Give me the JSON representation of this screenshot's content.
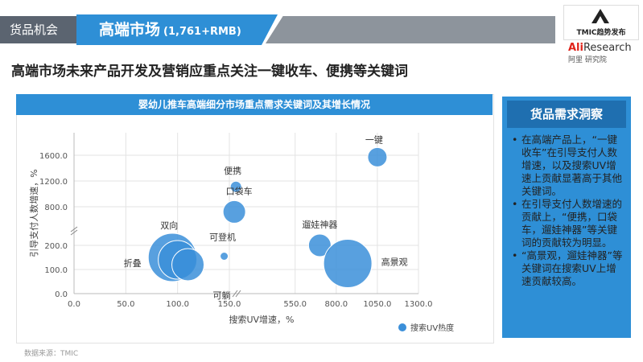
{
  "header": {
    "section": "货品机会",
    "title": "高端市场",
    "title_sub": "(1,761+RMB)",
    "logo_text": "TMIC趋势发布",
    "ali_brand": "Ali",
    "ali_brand2": "Research",
    "ali_sub": "阿里 研究院"
  },
  "headline": "高端市场未来产品开发及营销应重点关注一键收车、便携等关键词",
  "chart_title": "婴幼儿推车高端细分市场重点需求关键词及其增长情况",
  "chart_data": {
    "type": "scatter",
    "title": "婴幼儿推车高端细分市场重点需求关键词及其增长情况",
    "xlabel": "搜索UV增速，%",
    "ylabel": "引导支付人数增速，%",
    "legend": "搜索UV热度",
    "legend_position": "bottom-right",
    "x_ticks": [
      "0.0",
      "50.0",
      "100.0",
      "150.0",
      "550.0",
      "800.0",
      "1050.0",
      "1300.0"
    ],
    "y_ticks": [
      "0.0",
      "100.0",
      "200.0",
      "800.0",
      "1200.0",
      "1600.0"
    ],
    "axis_breaks": "both axes broken",
    "points": [
      {
        "label": "一键",
        "x": 1050,
        "y": 1570,
        "size": 12
      },
      {
        "label": "便携",
        "x": 190,
        "y": 1110,
        "size": 7
      },
      {
        "label": "口袋车",
        "x": 180,
        "y": 720,
        "size": 14
      },
      {
        "label": "遛娃神器",
        "x": 700,
        "y": 200,
        "size": 14
      },
      {
        "label": "高景观",
        "x": 870,
        "y": 125,
        "size": 30
      },
      {
        "label": "双向",
        "x": 95,
        "y": 150,
        "size": 30
      },
      {
        "label": "折叠",
        "x": 100,
        "y": 140,
        "size": 24
      },
      {
        "label": "可躺",
        "x": 110,
        "y": 120,
        "size": 20
      },
      {
        "label": "可登机",
        "x": 145,
        "y": 155,
        "size": 5
      }
    ]
  },
  "insight": {
    "title": "货品需求洞察",
    "items": [
      "在高端产品上，“一键收车”在引导支付人数增速，以及搜索UV增速上贡献显著高于其他关键词。",
      "在引导支付人数增速的贡献上，“便携，口袋车，遛娃神器”等关键词的贡献较为明显。",
      "“高景观，遛娃神器”等关键词在搜索UV上增速贡献较高。"
    ]
  },
  "source": "数据来源：TMIC",
  "colors": {
    "accent": "#2e8fd6",
    "bubble": "#3b8fd9",
    "section": "#5b6470"
  }
}
